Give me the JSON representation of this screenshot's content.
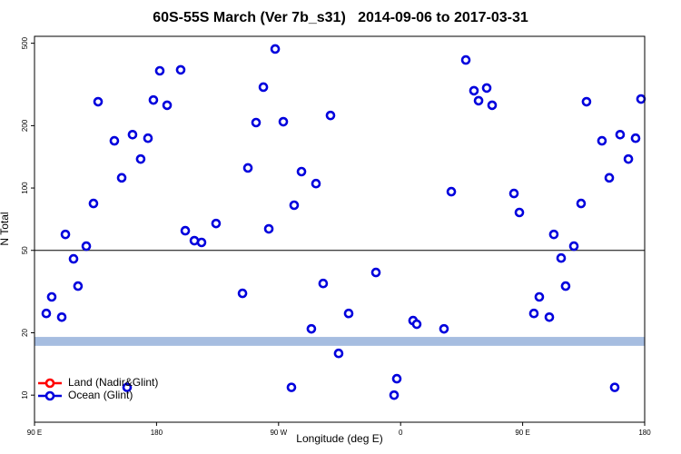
{
  "chart_data": {
    "type": "scatter",
    "title": "60S-55S March (Ver 7b_s31)   2014-09-06 to 2017-03-31",
    "x_label": "Longitude (deg E)",
    "y_label": "N Total",
    "log_y": true,
    "xlim": [
      90,
      540
    ],
    "ylim": [
      7.4,
      540
    ],
    "xticks": [
      {
        "value": 90,
        "label": "90 E"
      },
      {
        "value": 180,
        "label": "180"
      },
      {
        "value": 270,
        "label": "90 W"
      },
      {
        "value": 360,
        "label": "0"
      },
      {
        "value": 450,
        "label": "90 E"
      },
      {
        "value": 540,
        "label": "180"
      }
    ],
    "yticks": [
      10,
      20,
      50,
      100,
      200,
      500
    ],
    "hline": 50,
    "band": [
      17.3,
      19.1
    ],
    "band_color": "#a6bde0",
    "legend": "lower left",
    "series": [
      {
        "name": "Land (Nadir&Glint)",
        "color": "#ff0000",
        "x": [],
        "values": []
      },
      {
        "name": "Ocean (Glint)",
        "color": "#0000dd",
        "x": [
          98.7,
          102.7,
          110.1,
          112.8,
          118.8,
          122.1,
          128.2,
          133.5,
          136.9,
          148.9,
          154.3,
          158.3,
          162.3,
          168.3,
          173.7,
          177.7,
          182.4,
          187.8,
          197.8,
          201.2,
          207.9,
          213.2,
          223.9,
          243.4,
          247.4,
          253.4,
          258.8,
          262.8,
          267.5,
          273.5,
          279.5,
          281.5,
          286.9,
          294.2,
          297.6,
          302.9,
          308.3,
          314.3,
          321.7,
          341.8,
          355.2,
          357.2,
          369.2,
          371.9,
          392,
          397.4,
          408.1,
          414.1,
          417.5,
          423.5,
          427.5,
          443.6,
          447.6,
          458.3,
          462.3,
          469.7,
          473,
          478.4,
          481.7,
          487.8,
          493.1,
          497.1,
          508.5,
          513.9,
          517.9,
          521.9,
          528,
          533.3,
          537.3
        ],
        "values": [
          24.8,
          29.8,
          23.8,
          59.7,
          45.5,
          33.6,
          52.4,
          84.2,
          261,
          169,
          112,
          10.9,
          181,
          138,
          174,
          266,
          368,
          251,
          372,
          62.2,
          55.7,
          54.6,
          67.4,
          31.0,
          125,
          207,
          307,
          63.5,
          469,
          209,
          10.9,
          82.6,
          120,
          20.9,
          105,
          34.6,
          224,
          15.9,
          24.8,
          39.1,
          10,
          12.0,
          22.9,
          22.0,
          20.9,
          96,
          415,
          295,
          264,
          304,
          251,
          94.1,
          76.2,
          24.8,
          29.8,
          23.8,
          59.7,
          45.9,
          33.6,
          52.4,
          84.2,
          261,
          169,
          112,
          10.9,
          181,
          138,
          174,
          269
        ]
      }
    ]
  }
}
